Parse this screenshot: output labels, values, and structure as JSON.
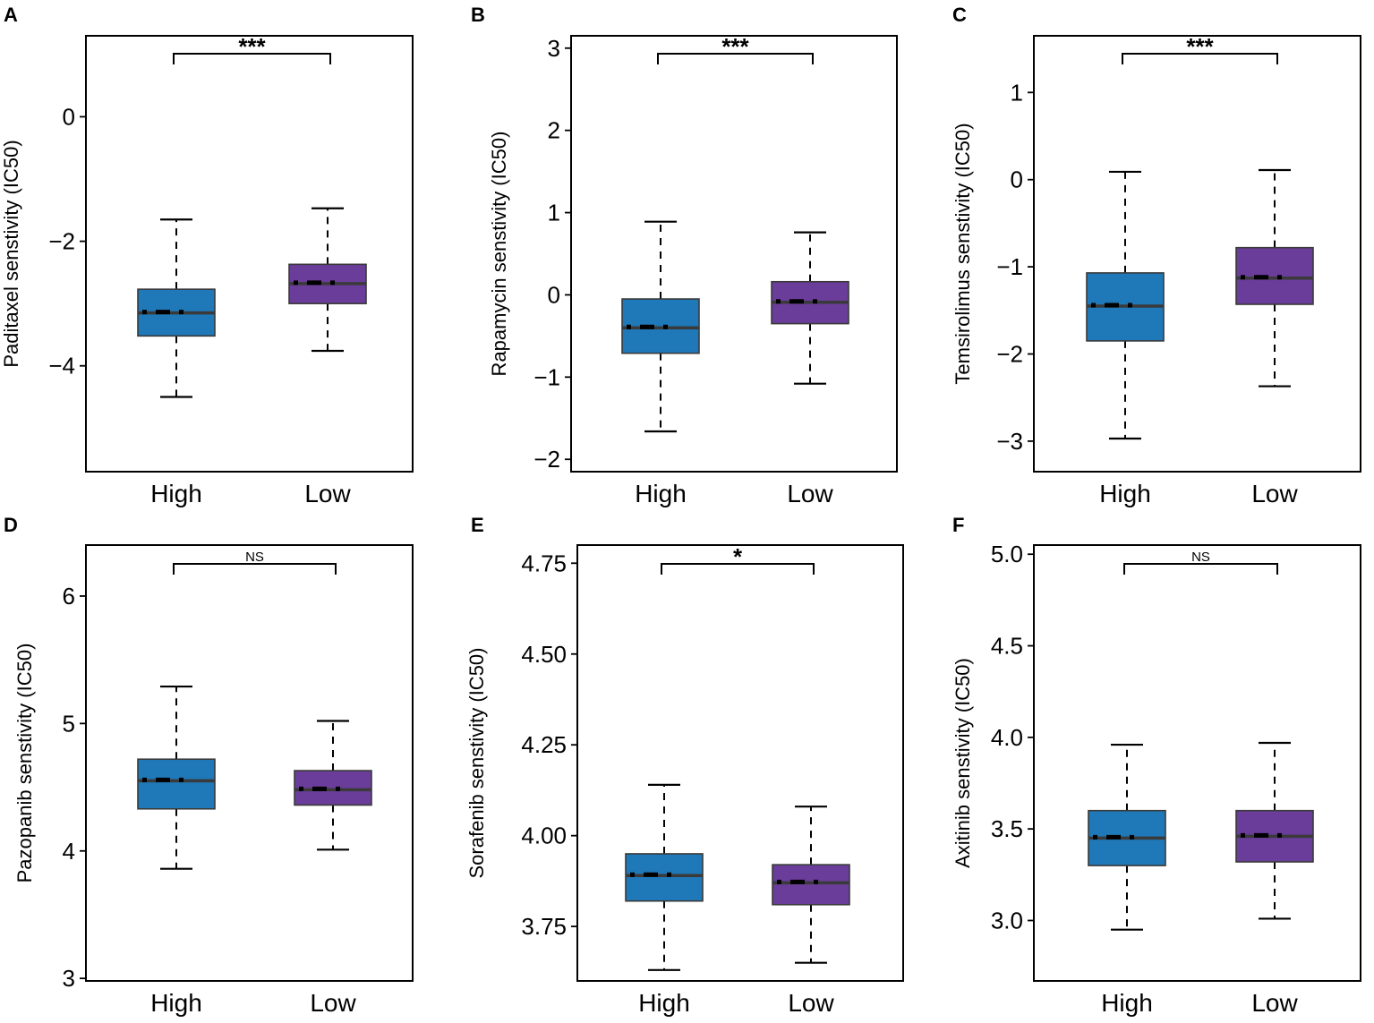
{
  "figure": {
    "colors": {
      "high": "#1f78b8",
      "low": "#6a3d9a",
      "median": "#3a3a3a",
      "frame": "#000000"
    }
  },
  "chart_data": [
    {
      "type": "box",
      "panel": "A",
      "ylabel": "Paditaxel senstivity (IC50)",
      "categories": [
        "High",
        "Low"
      ],
      "ylim": [
        -5.7,
        1.3
      ],
      "yticks": [
        -4,
        -2,
        0
      ],
      "ytick_labels": [
        "−4",
        "−2",
        "0"
      ],
      "boxes": [
        {
          "name": "High",
          "whisker_low": -4.5,
          "q1": -3.52,
          "median": -3.15,
          "q3": -2.77,
          "whisker_high": -1.65
        },
        {
          "name": "Low",
          "whisker_low": -3.76,
          "q1": -3.0,
          "median": -2.68,
          "q3": -2.37,
          "whisker_high": -1.47
        }
      ],
      "significance": "***"
    },
    {
      "type": "box",
      "panel": "B",
      "ylabel": "Rapamycin senstivity (IC50)",
      "categories": [
        "High",
        "Low"
      ],
      "ylim": [
        -2.15,
        3.15
      ],
      "yticks": [
        -2,
        -1,
        0,
        1,
        2,
        3
      ],
      "ytick_labels": [
        "−2",
        "−1",
        "0",
        "1",
        "2",
        "3"
      ],
      "boxes": [
        {
          "name": "High",
          "whisker_low": -1.66,
          "q1": -0.71,
          "median": -0.4,
          "q3": -0.05,
          "whisker_high": 0.89
        },
        {
          "name": "Low",
          "whisker_low": -1.08,
          "q1": -0.35,
          "median": -0.09,
          "q3": 0.16,
          "whisker_high": 0.76
        }
      ],
      "significance": "***"
    },
    {
      "type": "box",
      "panel": "C",
      "ylabel": "Temsirolimus senstivity (IC50)",
      "categories": [
        "High",
        "Low"
      ],
      "ylim": [
        -3.35,
        1.65
      ],
      "yticks": [
        -3,
        -2,
        -1,
        0,
        1
      ],
      "ytick_labels": [
        "−3",
        "−2",
        "−1",
        "0",
        "1"
      ],
      "boxes": [
        {
          "name": "High",
          "whisker_low": -2.97,
          "q1": -1.85,
          "median": -1.45,
          "q3": -1.07,
          "whisker_high": 0.09
        },
        {
          "name": "Low",
          "whisker_low": -2.37,
          "q1": -1.43,
          "median": -1.13,
          "q3": -0.78,
          "whisker_high": 0.11
        }
      ],
      "significance": "***"
    },
    {
      "type": "box",
      "panel": "D",
      "ylabel": "Pazopanib senstivity (IC50)",
      "categories": [
        "High",
        "Low"
      ],
      "ylim": [
        2.98,
        6.4
      ],
      "yticks": [
        3,
        4,
        5,
        6
      ],
      "ytick_labels": [
        "3",
        "4",
        "5",
        "6"
      ],
      "boxes": [
        {
          "name": "High",
          "whisker_low": 3.86,
          "q1": 4.33,
          "median": 4.55,
          "q3": 4.72,
          "whisker_high": 5.29
        },
        {
          "name": "Low",
          "whisker_low": 4.01,
          "q1": 4.36,
          "median": 4.48,
          "q3": 4.63,
          "whisker_high": 5.02
        }
      ],
      "significance": "NS"
    },
    {
      "type": "box",
      "panel": "E",
      "ylabel": "Sorafenib senstivity (IC50)",
      "categories": [
        "High",
        "Low"
      ],
      "ylim": [
        3.6,
        4.8
      ],
      "yticks": [
        3.75,
        4.0,
        4.25,
        4.5,
        4.75
      ],
      "ytick_labels": [
        "3.75",
        "4.00",
        "4.25",
        "4.50",
        "4.75"
      ],
      "boxes": [
        {
          "name": "High",
          "whisker_low": 3.63,
          "q1": 3.82,
          "median": 3.89,
          "q3": 3.95,
          "whisker_high": 4.14
        },
        {
          "name": "Low",
          "whisker_low": 3.65,
          "q1": 3.81,
          "median": 3.87,
          "q3": 3.92,
          "whisker_high": 4.08
        }
      ],
      "significance": "*"
    },
    {
      "type": "box",
      "panel": "F",
      "ylabel": "Axitinib senstivity (IC50)",
      "categories": [
        "High",
        "Low"
      ],
      "ylim": [
        2.67,
        5.05
      ],
      "yticks": [
        3.0,
        3.5,
        4.0,
        4.5,
        5.0
      ],
      "ytick_labels": [
        "3.0",
        "3.5",
        "4.0",
        "4.5",
        "5.0"
      ],
      "boxes": [
        {
          "name": "High",
          "whisker_low": 2.95,
          "q1": 3.3,
          "median": 3.45,
          "q3": 3.6,
          "whisker_high": 3.96
        },
        {
          "name": "Low",
          "whisker_low": 3.01,
          "q1": 3.32,
          "median": 3.46,
          "q3": 3.6,
          "whisker_high": 3.97
        }
      ],
      "significance": "NS"
    }
  ]
}
